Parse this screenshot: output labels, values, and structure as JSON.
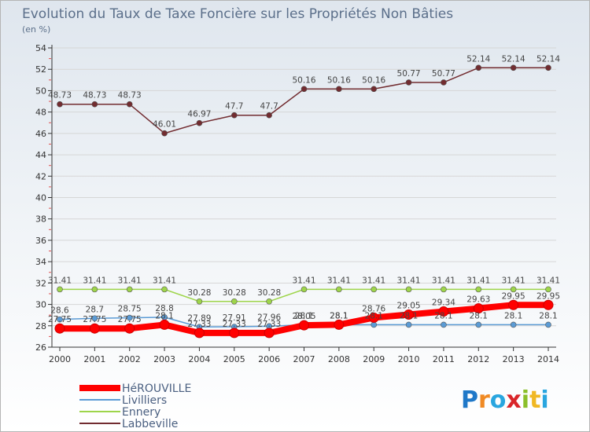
{
  "chart_data": {
    "type": "line",
    "title": "Evolution du Taux de Taxe Foncière sur les Propriétés Non Bâties",
    "subtitle": "(en %)",
    "xlabel": "",
    "ylabel": "",
    "x": [
      "2000",
      "2001",
      "2002",
      "2003",
      "2004",
      "2005",
      "2006",
      "2007",
      "2008",
      "2009",
      "2010",
      "2011",
      "2012",
      "2013",
      "2014"
    ],
    "ylim": [
      26,
      54
    ],
    "yticks": [
      26,
      28,
      30,
      32,
      34,
      36,
      38,
      40,
      42,
      44,
      46,
      48,
      50,
      52,
      54
    ],
    "legend_position": "bottom-left",
    "series": [
      {
        "name": "HéROUVILLE",
        "color": "#ff0000",
        "values": [
          27.75,
          27.75,
          27.75,
          28.1,
          27.33,
          27.33,
          27.33,
          28.05,
          28.1,
          28.76,
          29.05,
          29.34,
          29.63,
          29.95,
          29.95
        ]
      },
      {
        "name": "Livilliers",
        "color": "#5b9bd5",
        "values": [
          28.6,
          28.7,
          28.75,
          28.8,
          27.89,
          27.91,
          27.96,
          28.1,
          28.1,
          28.1,
          28.1,
          28.1,
          28.1,
          28.1,
          28.1
        ]
      },
      {
        "name": "Ennery",
        "color": "#9ed54a",
        "values": [
          31.41,
          31.41,
          31.41,
          31.41,
          30.28,
          30.28,
          30.28,
          31.41,
          31.41,
          31.41,
          31.41,
          31.41,
          31.41,
          31.41,
          31.41
        ]
      },
      {
        "name": "Labbeville",
        "color": "#722c30",
        "values": [
          48.73,
          48.73,
          48.73,
          46.01,
          46.97,
          47.7,
          47.7,
          50.16,
          50.16,
          50.16,
          50.77,
          50.77,
          52.14,
          52.14,
          52.14
        ]
      }
    ]
  },
  "logo": {
    "text": "Proxiti",
    "letters": [
      "P",
      "r",
      "o",
      "x",
      "i",
      "t",
      "i"
    ]
  }
}
